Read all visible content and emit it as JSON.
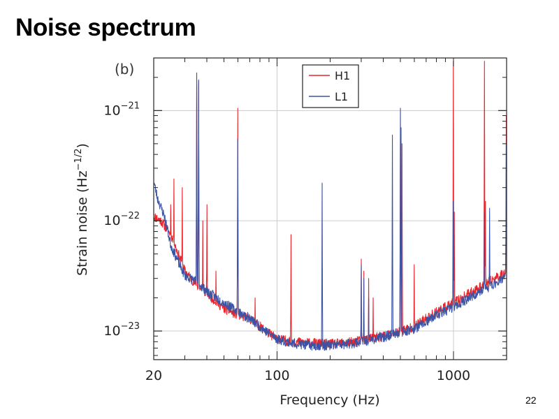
{
  "slide": {
    "title": "Noise spectrum",
    "page_number": "22"
  },
  "chart_data": {
    "type": "line",
    "panel_label": "(b)",
    "xlabel": "Frequency (Hz)",
    "ylabel_main": "Strain noise (Hz",
    "ylabel_sup": "−1/2",
    "ylabel_close": ")",
    "x_scale": "log",
    "y_scale": "log",
    "xlim": [
      20,
      2000
    ],
    "ylim": [
      5.5e-24,
      3e-21
    ],
    "grid": true,
    "legend_position": "top-center",
    "x_ticks": [
      {
        "value": 20,
        "label": "20"
      },
      {
        "value": 100,
        "label": "100"
      },
      {
        "value": 1000,
        "label": "1000"
      }
    ],
    "y_ticks": [
      {
        "value": 1e-21,
        "base": "10",
        "exp": "−21"
      },
      {
        "value": 1e-22,
        "base": "10",
        "exp": "−22"
      },
      {
        "value": 1e-23,
        "base": "10",
        "exp": "−23"
      }
    ],
    "series": [
      {
        "name": "H1",
        "color": "#e8262e",
        "floor": [
          [
            20,
            1.1e-22
          ],
          [
            22,
            1e-22
          ],
          [
            25,
            7.5e-23
          ],
          [
            30,
            3.5e-23
          ],
          [
            35,
            2.6e-23
          ],
          [
            40,
            2.2e-23
          ],
          [
            50,
            1.6e-23
          ],
          [
            60,
            1.4e-23
          ],
          [
            70,
            1.3e-23
          ],
          [
            80,
            1.1e-23
          ],
          [
            90,
            9.5e-24
          ],
          [
            100,
            8.5e-24
          ],
          [
            120,
            8e-24
          ],
          [
            150,
            7.8e-24
          ],
          [
            200,
            7.6e-24
          ],
          [
            250,
            7.8e-24
          ],
          [
            300,
            8.2e-24
          ],
          [
            400,
            9e-24
          ],
          [
            500,
            1e-23
          ],
          [
            600,
            1.1e-23
          ],
          [
            700,
            1.3e-23
          ],
          [
            800,
            1.5e-23
          ],
          [
            1000,
            1.8e-23
          ],
          [
            1300,
            2.3e-23
          ],
          [
            1600,
            2.8e-23
          ],
          [
            2000,
            3.5e-23
          ]
        ],
        "peaks": [
          [
            25,
            1.4e-22
          ],
          [
            26,
            2.4e-22
          ],
          [
            29,
            2e-22
          ],
          [
            35,
            1.7e-21
          ],
          [
            36,
            1.85e-21
          ],
          [
            38,
            1e-22
          ],
          [
            40,
            1.4e-22
          ],
          [
            45,
            3.5e-23
          ],
          [
            60,
            1.05e-21
          ],
          [
            75,
            2e-23
          ],
          [
            120,
            7.5e-23
          ],
          [
            300,
            4.5e-23
          ],
          [
            310,
            3.5e-23
          ],
          [
            330,
            3e-23
          ],
          [
            350,
            2e-23
          ],
          [
            500,
            6e-22
          ],
          [
            510,
            5e-22
          ],
          [
            600,
            4e-23
          ],
          [
            1000,
            2.8e-21
          ],
          [
            1010,
            1.2e-22
          ],
          [
            1500,
            2.8e-21
          ],
          [
            1520,
            1.5e-22
          ],
          [
            1990,
            9e-22
          ]
        ],
        "noise_seed": 11
      },
      {
        "name": "L1",
        "color": "#3a53a4",
        "floor": [
          [
            20,
            2.3e-22
          ],
          [
            21,
            1.6e-22
          ],
          [
            23,
            1.1e-22
          ],
          [
            25,
            6e-23
          ],
          [
            28,
            4e-23
          ],
          [
            30,
            3.2e-23
          ],
          [
            35,
            2.8e-23
          ],
          [
            40,
            2.3e-23
          ],
          [
            50,
            1.8e-23
          ],
          [
            60,
            1.5e-23
          ],
          [
            70,
            1.3e-23
          ],
          [
            80,
            1.1e-23
          ],
          [
            90,
            9.5e-24
          ],
          [
            100,
            8.5e-24
          ],
          [
            120,
            7.8e-24
          ],
          [
            150,
            7.4e-24
          ],
          [
            200,
            7.4e-24
          ],
          [
            250,
            7.6e-24
          ],
          [
            300,
            8e-24
          ],
          [
            400,
            8.8e-24
          ],
          [
            500,
            9.8e-24
          ],
          [
            600,
            1.05e-23
          ],
          [
            700,
            1.2e-23
          ],
          [
            800,
            1.4e-23
          ],
          [
            1000,
            1.65e-23
          ],
          [
            1300,
            2.1e-23
          ],
          [
            1600,
            2.5e-23
          ],
          [
            2000,
            3.2e-23
          ]
        ],
        "peaks": [
          [
            22,
            1.2e-22
          ],
          [
            35,
            2.2e-21
          ],
          [
            36,
            1.9e-21
          ],
          [
            60,
            5.5e-22
          ],
          [
            180,
            2.2e-22
          ],
          [
            300,
            4e-23
          ],
          [
            310,
            3e-23
          ],
          [
            330,
            2e-23
          ],
          [
            450,
            6e-22
          ],
          [
            500,
            1.05e-21
          ],
          [
            505,
            7e-22
          ],
          [
            1000,
            1.5e-22
          ],
          [
            1500,
            1.2e-22
          ],
          [
            1600,
            1.3e-22
          ],
          [
            1990,
            5e-22
          ]
        ],
        "noise_seed": 23
      }
    ]
  }
}
